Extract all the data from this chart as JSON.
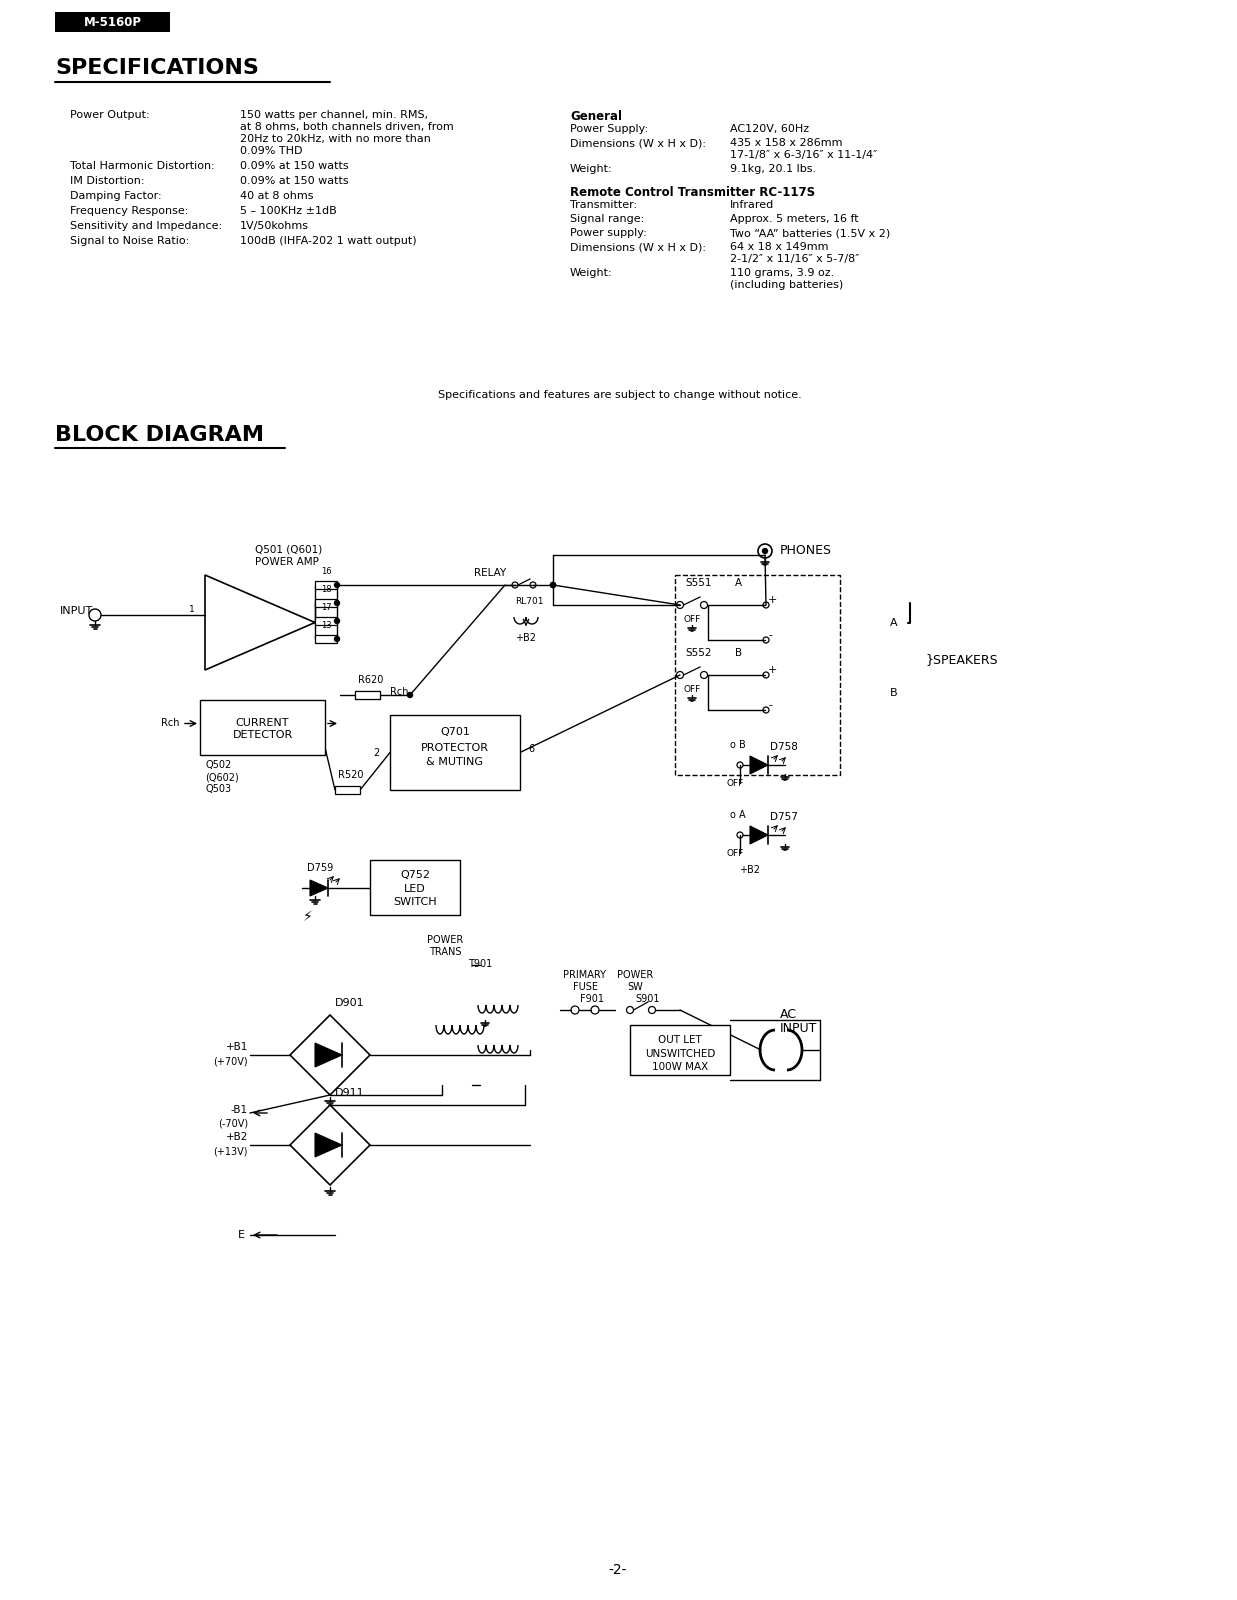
{
  "bg_color": "#ffffff",
  "header_label": "M-5160P",
  "header_bg": "#000000",
  "header_text_color": "#ffffff",
  "spec_title": "SPECIFICATIONS",
  "block_title": "BLOCK DIAGRAM",
  "page_number": "-2-",
  "footer_note": "Specifications and features are subject to change without notice.",
  "spec_left": [
    [
      "Power Output:",
      "150 watts per channel, min. RMS,\nat 8 ohms, both channels driven, from\n20Hz to 20kHz, with no more than\n0.09% THD"
    ],
    [
      "Total Harmonic Distortion:",
      "0.09% at 150 watts"
    ],
    [
      "IM Distortion:",
      "0.09% at 150 watts"
    ],
    [
      "Damping Factor:",
      "40 at 8 ohms"
    ],
    [
      "Frequency Response:",
      "5 – 100KHz ±1dB"
    ],
    [
      "Sensitivity and Impedance:",
      "1V/50kohms"
    ],
    [
      "Signal to Noise Ratio:",
      "100dB (IHFA-202 1 watt output)"
    ]
  ],
  "spec_right_general_title": "General",
  "spec_right_general": [
    [
      "Power Supply:",
      "AC120V, 60Hz"
    ],
    [
      "Dimensions (W x H x D):",
      "435 x 158 x 286mm\n17-1/8″ x 6-3/16″ x 11-1/4″"
    ],
    [
      "Weight:",
      "9.1kg, 20.1 lbs."
    ]
  ],
  "spec_right_rc_title": "Remote Control Transmitter RC-117S",
  "spec_right_rc": [
    [
      "Transmitter:",
      "Infrared"
    ],
    [
      "Signal range:",
      "Approx. 5 meters, 16 ft"
    ],
    [
      "Power supply:",
      "Two “AA” batteries (1.5V x 2)"
    ],
    [
      "Dimensions (W x H x D):",
      "64 x 18 x 149mm\n2-1/2″ x 11/16″ x 5-7/8″"
    ],
    [
      "Weight:",
      "110 grams, 3.9 oz.\n(including batteries)"
    ]
  ]
}
